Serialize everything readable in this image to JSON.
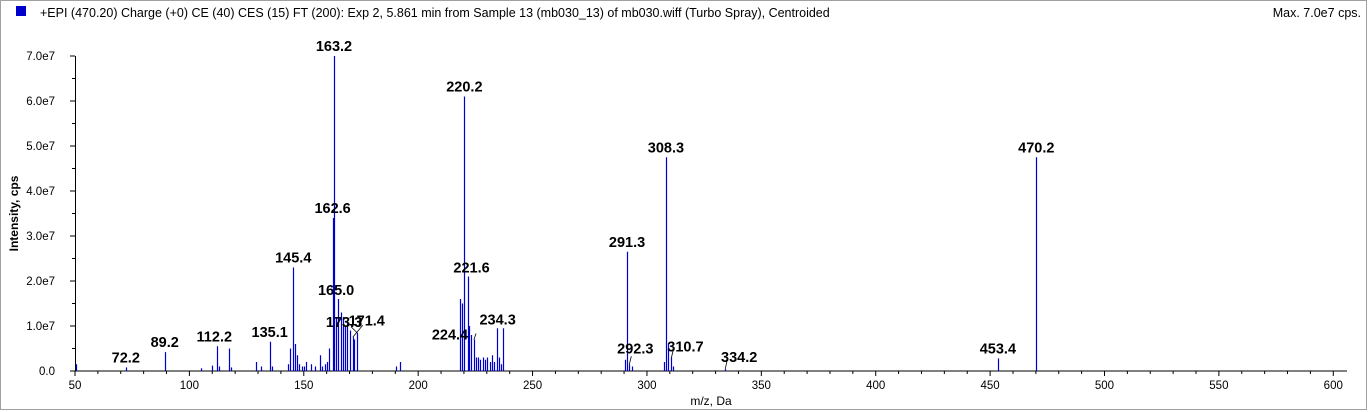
{
  "header": {
    "title": "+EPI (470.20) Charge (+0) CE (40) CES (15) FT (200): Exp 2, 5.861 min from Sample 13 (mb030_13) of mb030.wiff (Turbo Spray), Centroided",
    "max_label": "Max. 7.0e7 cps.",
    "marker_color": "#0000cc"
  },
  "chart_data": {
    "type": "bar",
    "xlabel": "m/z, Da",
    "ylabel": "Intensity, cps",
    "xlim": [
      50,
      606
    ],
    "ylim": [
      0,
      70000000.0
    ],
    "xticks": [
      50,
      100,
      150,
      200,
      250,
      300,
      350,
      400,
      450,
      500,
      550,
      600
    ],
    "yticks": [
      0,
      10000000.0,
      20000000.0,
      30000000.0,
      40000000.0,
      50000000.0,
      60000000.0,
      70000000.0
    ],
    "ytick_labels": [
      "0.0",
      "1.0e7",
      "2.0e7",
      "3.0e7",
      "4.0e7",
      "5.0e7",
      "6.0e7",
      "7.0e7"
    ],
    "line_color": "#0000cc",
    "peaks": [
      [
        50.3,
        1500000.0
      ],
      [
        72.2,
        800000.0
      ],
      [
        89.2,
        4200000.0
      ],
      [
        105.2,
        600000.0
      ],
      [
        110.1,
        1200000.0
      ],
      [
        112.2,
        5500000.0
      ],
      [
        113.1,
        1000000.0
      ],
      [
        117.2,
        5000000.0
      ],
      [
        118.1,
        800000.0
      ],
      [
        129.1,
        2000000.0
      ],
      [
        131.1,
        1000000.0
      ],
      [
        135.1,
        6500000.0
      ],
      [
        136.1,
        1000000.0
      ],
      [
        143.1,
        1500000.0
      ],
      [
        144.1,
        5000000.0
      ],
      [
        145.4,
        23000000.0
      ],
      [
        146.2,
        6000000.0
      ],
      [
        147.1,
        3500000.0
      ],
      [
        148.1,
        1500000.0
      ],
      [
        149.1,
        1000000.0
      ],
      [
        150.1,
        1000000.0
      ],
      [
        151.1,
        2000000.0
      ],
      [
        153.1,
        1500000.0
      ],
      [
        155.1,
        1000000.0
      ],
      [
        157.1,
        3500000.0
      ],
      [
        158.1,
        1000000.0
      ],
      [
        159.1,
        1500000.0
      ],
      [
        160.1,
        2000000.0
      ],
      [
        161.1,
        5000000.0
      ],
      [
        162.6,
        34000000.0
      ],
      [
        163.2,
        70000000.0
      ],
      [
        164.1,
        12000000.0
      ],
      [
        165.0,
        16000000.0
      ],
      [
        166.1,
        13000000.0
      ],
      [
        167.1,
        12000000.0
      ],
      [
        168.1,
        10000000.0
      ],
      [
        169.1,
        11000000.0
      ],
      [
        170.1,
        9000000.0
      ],
      [
        171.4,
        7500000.0
      ],
      [
        172.1,
        7000000.0
      ],
      [
        173.3,
        8500000.0
      ],
      [
        190.2,
        1000000.0
      ],
      [
        192.2,
        2000000.0
      ],
      [
        218.2,
        16000000.0
      ],
      [
        219.2,
        15000000.0
      ],
      [
        220.2,
        61000000.0
      ],
      [
        221.6,
        21000000.0
      ],
      [
        222.2,
        10000000.0
      ],
      [
        223.2,
        8000000.0
      ],
      [
        224.4,
        7000000.0
      ],
      [
        225.2,
        3000000.0
      ],
      [
        226.2,
        3000000.0
      ],
      [
        227.2,
        2500000.0
      ],
      [
        228.2,
        3000000.0
      ],
      [
        229.2,
        2500000.0
      ],
      [
        230.2,
        3000000.0
      ],
      [
        231.2,
        2000000.0
      ],
      [
        232.2,
        3500000.0
      ],
      [
        233.2,
        2000000.0
      ],
      [
        234.3,
        9500000.0
      ],
      [
        235.2,
        3000000.0
      ],
      [
        236.2,
        1500000.0
      ],
      [
        237.2,
        9500000.0
      ],
      [
        290.3,
        2500000.0
      ],
      [
        291.3,
        26500000.0
      ],
      [
        292.3,
        1500000.0
      ],
      [
        293.3,
        1000000.0
      ],
      [
        307.3,
        2000000.0
      ],
      [
        308.3,
        47500000.0
      ],
      [
        309.3,
        6000000.0
      ],
      [
        310.7,
        3000000.0
      ],
      [
        311.3,
        1000000.0
      ],
      [
        334.2,
        400000.0
      ],
      [
        453.4,
        2800000.0
      ],
      [
        470.2,
        47500000.0
      ]
    ],
    "labels": [
      {
        "mz": 163.2,
        "text": "163.2"
      },
      {
        "mz": 220.2,
        "text": "220.2"
      },
      {
        "mz": 308.3,
        "text": "308.3"
      },
      {
        "mz": 470.2,
        "text": "470.2"
      },
      {
        "mz": 162.6,
        "text": "162.6"
      },
      {
        "mz": 291.3,
        "text": "291.3"
      },
      {
        "mz": 145.4,
        "text": "145.4"
      },
      {
        "mz": 221.6,
        "text": "221.6"
      },
      {
        "mz": 165.0,
        "text": "165.0"
      },
      {
        "mz": 171.4,
        "text": "171.4"
      },
      {
        "mz": 173.3,
        "text": "173.3"
      },
      {
        "mz": 224.4,
        "text": "224.4"
      },
      {
        "mz": 234.3,
        "text": "234.3"
      },
      {
        "mz": 135.1,
        "text": "135.1"
      },
      {
        "mz": 112.2,
        "text": "112.2"
      },
      {
        "mz": 89.2,
        "text": "89.2"
      },
      {
        "mz": 72.2,
        "text": "72.2"
      },
      {
        "mz": 292.3,
        "text": "292.3"
      },
      {
        "mz": 310.7,
        "text": "310.7"
      },
      {
        "mz": 334.2,
        "text": "334.2"
      },
      {
        "mz": 453.4,
        "text": "453.4"
      }
    ]
  }
}
